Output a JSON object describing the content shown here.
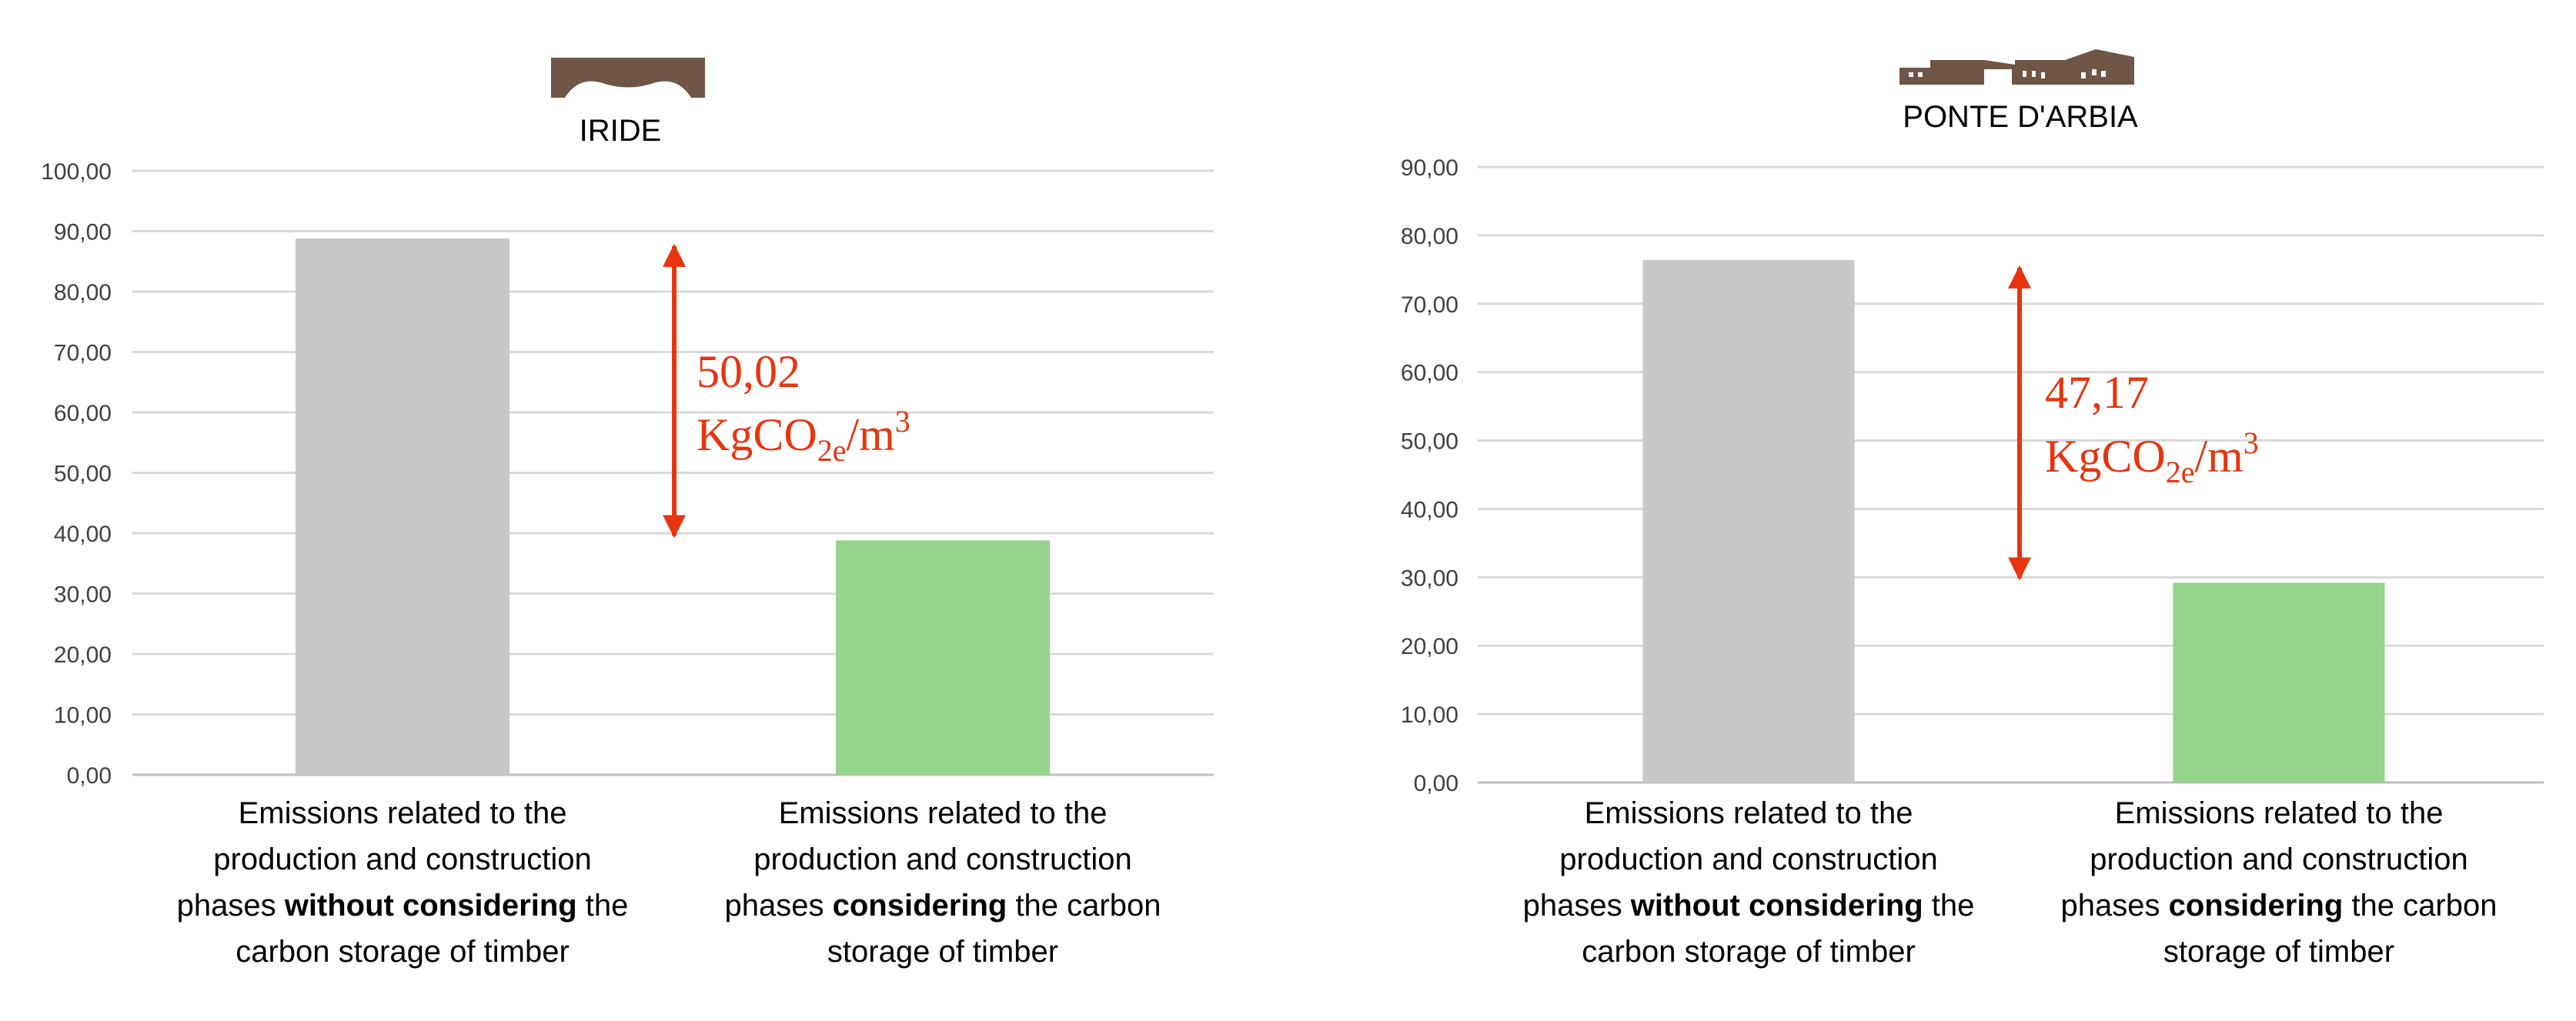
{
  "chart_data": [
    {
      "type": "bar",
      "title": "IRIDE",
      "logo": "building-silhouette-icon",
      "categories": [
        {
          "parts": [
            {
              "text": "Emissions related to the production and construction phases ",
              "bold": false
            },
            {
              "text": "without considering",
              "bold": true
            },
            {
              "text": " the carbon storage of timber",
              "bold": false
            }
          ]
        },
        {
          "parts": [
            {
              "text": "Emissions related to the production and construction phases ",
              "bold": false
            },
            {
              "text": "considering",
              "bold": true
            },
            {
              "text": " the carbon storage of timber",
              "bold": false
            }
          ]
        }
      ],
      "values": [
        88.8,
        38.8
      ],
      "bar_colors": [
        "#c8c8c8",
        "#94d38a"
      ],
      "ylim": [
        0,
        100
      ],
      "y_ticks": [
        "0,00",
        "10,00",
        "20,00",
        "30,00",
        "40,00",
        "50,00",
        "60,00",
        "70,00",
        "80,00",
        "90,00",
        "100,00"
      ],
      "grid": true,
      "annotation": {
        "value": "50,02",
        "unit": "KgCO2e/m3",
        "from": 88.8,
        "to": 38.8,
        "color": "#e8340f"
      }
    },
    {
      "type": "bar",
      "title": "PONTE D'ARBIA",
      "logo": "long-building-icon",
      "categories": [
        {
          "parts": [
            {
              "text": "Emissions related to the production and construction phases ",
              "bold": false
            },
            {
              "text": "without considering",
              "bold": true
            },
            {
              "text": " the carbon storage of timber",
              "bold": false
            }
          ]
        },
        {
          "parts": [
            {
              "text": "Emissions related to the production and construction phases ",
              "bold": false
            },
            {
              "text": "considering",
              "bold": true
            },
            {
              "text": " the carbon storage of timber",
              "bold": false
            }
          ]
        }
      ],
      "values": [
        76.4,
        29.2
      ],
      "bar_colors": [
        "#c8c8c8",
        "#94d38a"
      ],
      "ylim": [
        0,
        90
      ],
      "y_ticks": [
        "0,00",
        "10,00",
        "20,00",
        "30,00",
        "40,00",
        "50,00",
        "60,00",
        "70,00",
        "80,00",
        "90,00"
      ],
      "grid": true,
      "annotation": {
        "value": "47,17",
        "unit": "KgCO2e/m3",
        "from": 76.4,
        "to": 29.2,
        "color": "#e8340f"
      }
    }
  ]
}
